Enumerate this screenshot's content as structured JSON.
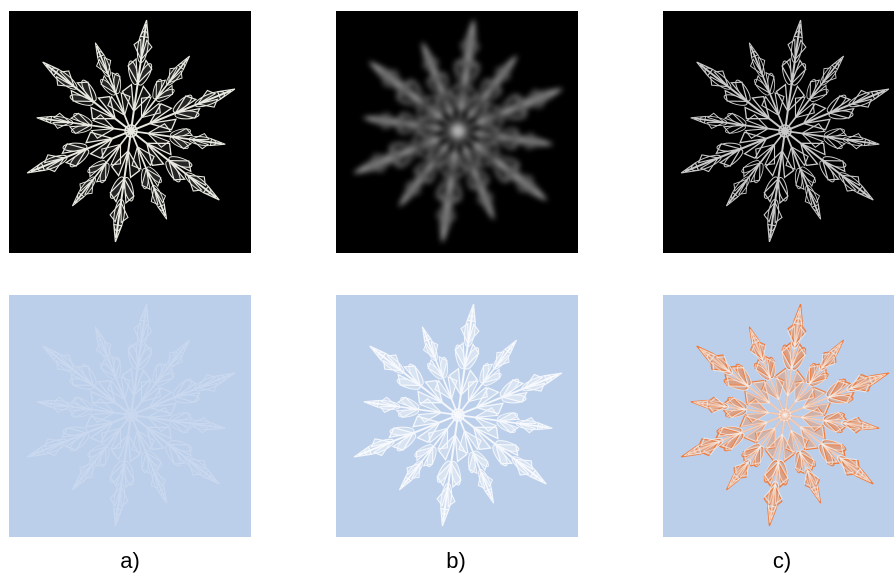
{
  "figure": {
    "captions": [
      "a)",
      "b)",
      "c)"
    ],
    "colors": {
      "dark_background": "#000000",
      "light_background": "#bccfea",
      "highlight": "#f07a3a"
    },
    "panels": [
      {
        "id": "a-top",
        "caption": "a)",
        "row": "top",
        "background": "#000000"
      },
      {
        "id": "b-top",
        "caption": "b)",
        "row": "top",
        "background": "#000000",
        "blurred": true
      },
      {
        "id": "c-top",
        "caption": "c)",
        "row": "top",
        "background": "#000000"
      },
      {
        "id": "a-bottom",
        "caption": "a)",
        "row": "bottom",
        "background": "#bccfea"
      },
      {
        "id": "b-bottom",
        "caption": "b)",
        "row": "bottom",
        "background": "#bccfea"
      },
      {
        "id": "c-bottom",
        "caption": "c)",
        "row": "bottom",
        "background": "#bccfea",
        "highlight": "#f07a3a"
      }
    ]
  }
}
